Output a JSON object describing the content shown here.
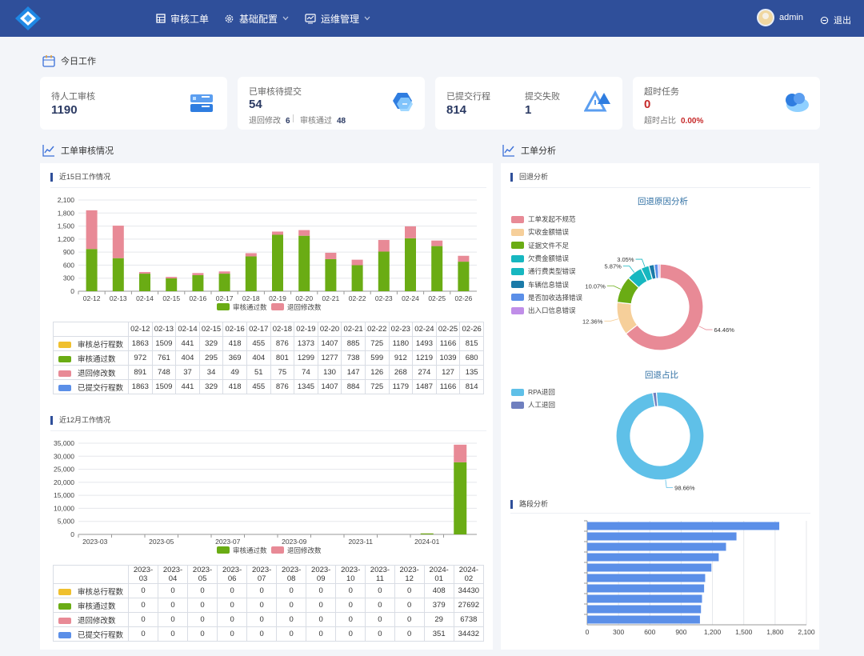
{
  "header": {
    "nav": [
      {
        "label": "审核工单",
        "icon": "table-icon"
      },
      {
        "label": "基础配置",
        "icon": "gear-icon"
      },
      {
        "label": "运维管理",
        "icon": "monitor-icon"
      }
    ],
    "user": "admin",
    "logout": "退出"
  },
  "today": {
    "title": "今日工作",
    "pending": {
      "label": "待人工审核",
      "value": "1190"
    },
    "reviewed": {
      "label": "已审核待提交",
      "value": "54",
      "sub1_label": "退回修改",
      "sub1_value": "6",
      "sub2_label": "审核通过",
      "sub2_value": "48"
    },
    "submitted": {
      "label": "已提交行程",
      "value": "814"
    },
    "failed": {
      "label": "提交失败",
      "value": "1"
    },
    "timeout": {
      "label": "超时任务",
      "value": "0",
      "ratio_label": "超时占比",
      "ratio_value": "0.00%"
    }
  },
  "review": {
    "title": "工单审核情况",
    "daily_title": "近15日工作情况",
    "monthly_title": "近12月工作情况",
    "legend_pass": "审核通过数",
    "legend_return": "退回修改数",
    "colors": {
      "pass": "#6aac14",
      "return": "#e88a96",
      "total": "#f0c02e",
      "submitted": "#5b8fe8"
    }
  },
  "daily_table": {
    "dates": [
      "02-12",
      "02-13",
      "02-14",
      "02-15",
      "02-16",
      "02-17",
      "02-18",
      "02-19",
      "02-20",
      "02-21",
      "02-22",
      "02-23",
      "02-24",
      "02-25",
      "02-26"
    ],
    "rows": [
      {
        "label": "审核总行程数",
        "color": "#f0c02e",
        "values": [
          "1863",
          "1509",
          "441",
          "329",
          "418",
          "455",
          "876",
          "1373",
          "1407",
          "885",
          "725",
          "1180",
          "1493",
          "1166",
          "815"
        ]
      },
      {
        "label": "审核通过数",
        "color": "#6aac14",
        "values": [
          "972",
          "761",
          "404",
          "295",
          "369",
          "404",
          "801",
          "1299",
          "1277",
          "738",
          "599",
          "912",
          "1219",
          "1039",
          "680"
        ]
      },
      {
        "label": "退回修改数",
        "color": "#e88a96",
        "values": [
          "891",
          "748",
          "37",
          "34",
          "49",
          "51",
          "75",
          "74",
          "130",
          "147",
          "126",
          "268",
          "274",
          "127",
          "135"
        ]
      },
      {
        "label": "已提交行程数",
        "color": "#5b8fe8",
        "values": [
          "1863",
          "1509",
          "441",
          "329",
          "418",
          "455",
          "876",
          "1345",
          "1407",
          "884",
          "725",
          "1179",
          "1487",
          "1166",
          "814"
        ]
      }
    ]
  },
  "monthly_table": {
    "months": [
      "2023-03",
      "2023-04",
      "2023-05",
      "2023-06",
      "2023-07",
      "2023-08",
      "2023-09",
      "2023-10",
      "2023-11",
      "2023-12",
      "2024-01",
      "2024-02"
    ],
    "rows": [
      {
        "label": "审核总行程数",
        "color": "#f0c02e",
        "values": [
          "0",
          "0",
          "0",
          "0",
          "0",
          "0",
          "0",
          "0",
          "0",
          "0",
          "408",
          "34430"
        ]
      },
      {
        "label": "审核通过数",
        "color": "#6aac14",
        "values": [
          "0",
          "0",
          "0",
          "0",
          "0",
          "0",
          "0",
          "0",
          "0",
          "0",
          "379",
          "27692"
        ]
      },
      {
        "label": "退回修改数",
        "color": "#e88a96",
        "values": [
          "0",
          "0",
          "0",
          "0",
          "0",
          "0",
          "0",
          "0",
          "0",
          "0",
          "29",
          "6738"
        ]
      },
      {
        "label": "已提交行程数",
        "color": "#5b8fe8",
        "values": [
          "0",
          "0",
          "0",
          "0",
          "0",
          "0",
          "0",
          "0",
          "0",
          "0",
          "351",
          "34432"
        ]
      }
    ]
  },
  "analysis": {
    "title": "工单分析",
    "return_analysis": "回退分析",
    "route_analysis": "路段分析"
  },
  "chart_data": [
    {
      "type": "bar",
      "stacked": true,
      "categories": [
        "02-12",
        "02-13",
        "02-14",
        "02-15",
        "02-16",
        "02-17",
        "02-18",
        "02-19",
        "02-20",
        "02-21",
        "02-22",
        "02-23",
        "02-24",
        "02-25",
        "02-26"
      ],
      "series": [
        {
          "name": "审核通过数",
          "values": [
            972,
            761,
            404,
            295,
            369,
            404,
            801,
            1299,
            1277,
            738,
            599,
            912,
            1219,
            1039,
            680
          ]
        },
        {
          "name": "退回修改数",
          "values": [
            891,
            748,
            37,
            34,
            49,
            51,
            75,
            74,
            130,
            147,
            126,
            268,
            274,
            127,
            135
          ]
        }
      ],
      "ylim": [
        0,
        2100
      ],
      "yticks": [
        "0",
        "300",
        "600",
        "900",
        "1,200",
        "1,500",
        "1,800",
        "2,100"
      ],
      "legend": "bottom"
    },
    {
      "type": "bar",
      "stacked": true,
      "categories": [
        "2023-03",
        "2023-04",
        "2023-05",
        "2023-06",
        "2023-07",
        "2023-08",
        "2023-09",
        "2023-10",
        "2023-11",
        "2023-12",
        "2024-01",
        "2024-02"
      ],
      "xticks": [
        "2023-03",
        "2023-05",
        "2023-07",
        "2023-09",
        "2023-11",
        "2024-01"
      ],
      "series": [
        {
          "name": "审核通过数",
          "values": [
            0,
            0,
            0,
            0,
            0,
            0,
            0,
            0,
            0,
            0,
            379,
            27692
          ]
        },
        {
          "name": "退回修改数",
          "values": [
            0,
            0,
            0,
            0,
            0,
            0,
            0,
            0,
            0,
            0,
            29,
            6738
          ]
        }
      ],
      "ylim": [
        0,
        35000
      ],
      "yticks": [
        "0",
        "5,000",
        "10,000",
        "15,000",
        "20,000",
        "25,000",
        "30,000",
        "35,000"
      ],
      "legend": "bottom"
    },
    {
      "type": "pie",
      "donut": true,
      "title": "回退原因分析",
      "labels": [
        "工单发起不规范",
        "实收金额错误",
        "证据文件不足",
        "欠费金额错误",
        "通行费类型错误",
        "车辆信息错误",
        "是否加收选择错误",
        "出入口信息错误"
      ],
      "colors": [
        "#e88a96",
        "#f6cf9a",
        "#6aac14",
        "#17b7c0",
        "#17b7c0",
        "#1a7aa8",
        "#5b8fe8",
        "#c08ee8"
      ],
      "values": [
        64.46,
        12.36,
        10.07,
        5.87,
        3.05,
        2.0,
        1.5,
        0.69
      ],
      "data_labels": [
        "64.46%",
        "12.36%",
        "10.07%",
        "5.87%",
        "3.05%",
        "",
        "",
        ""
      ],
      "legend": "left"
    },
    {
      "type": "pie",
      "donut": true,
      "title": "回退占比",
      "labels": [
        "RPA退回",
        "人工退回"
      ],
      "colors": [
        "#5fc0e8",
        "#6f7fbf"
      ],
      "values": [
        98.66,
        1.34
      ],
      "data_labels": [
        "98.66%",
        ""
      ],
      "legend": "left"
    },
    {
      "type": "bar",
      "orientation": "horizontal",
      "values": [
        1840,
        1430,
        1330,
        1260,
        1190,
        1130,
        1120,
        1100,
        1090,
        1080
      ],
      "xlim": [
        0,
        2100
      ],
      "xticks": [
        "0",
        "300",
        "600",
        "900",
        "1,200",
        "1,500",
        "1,800",
        "2,100"
      ]
    }
  ]
}
